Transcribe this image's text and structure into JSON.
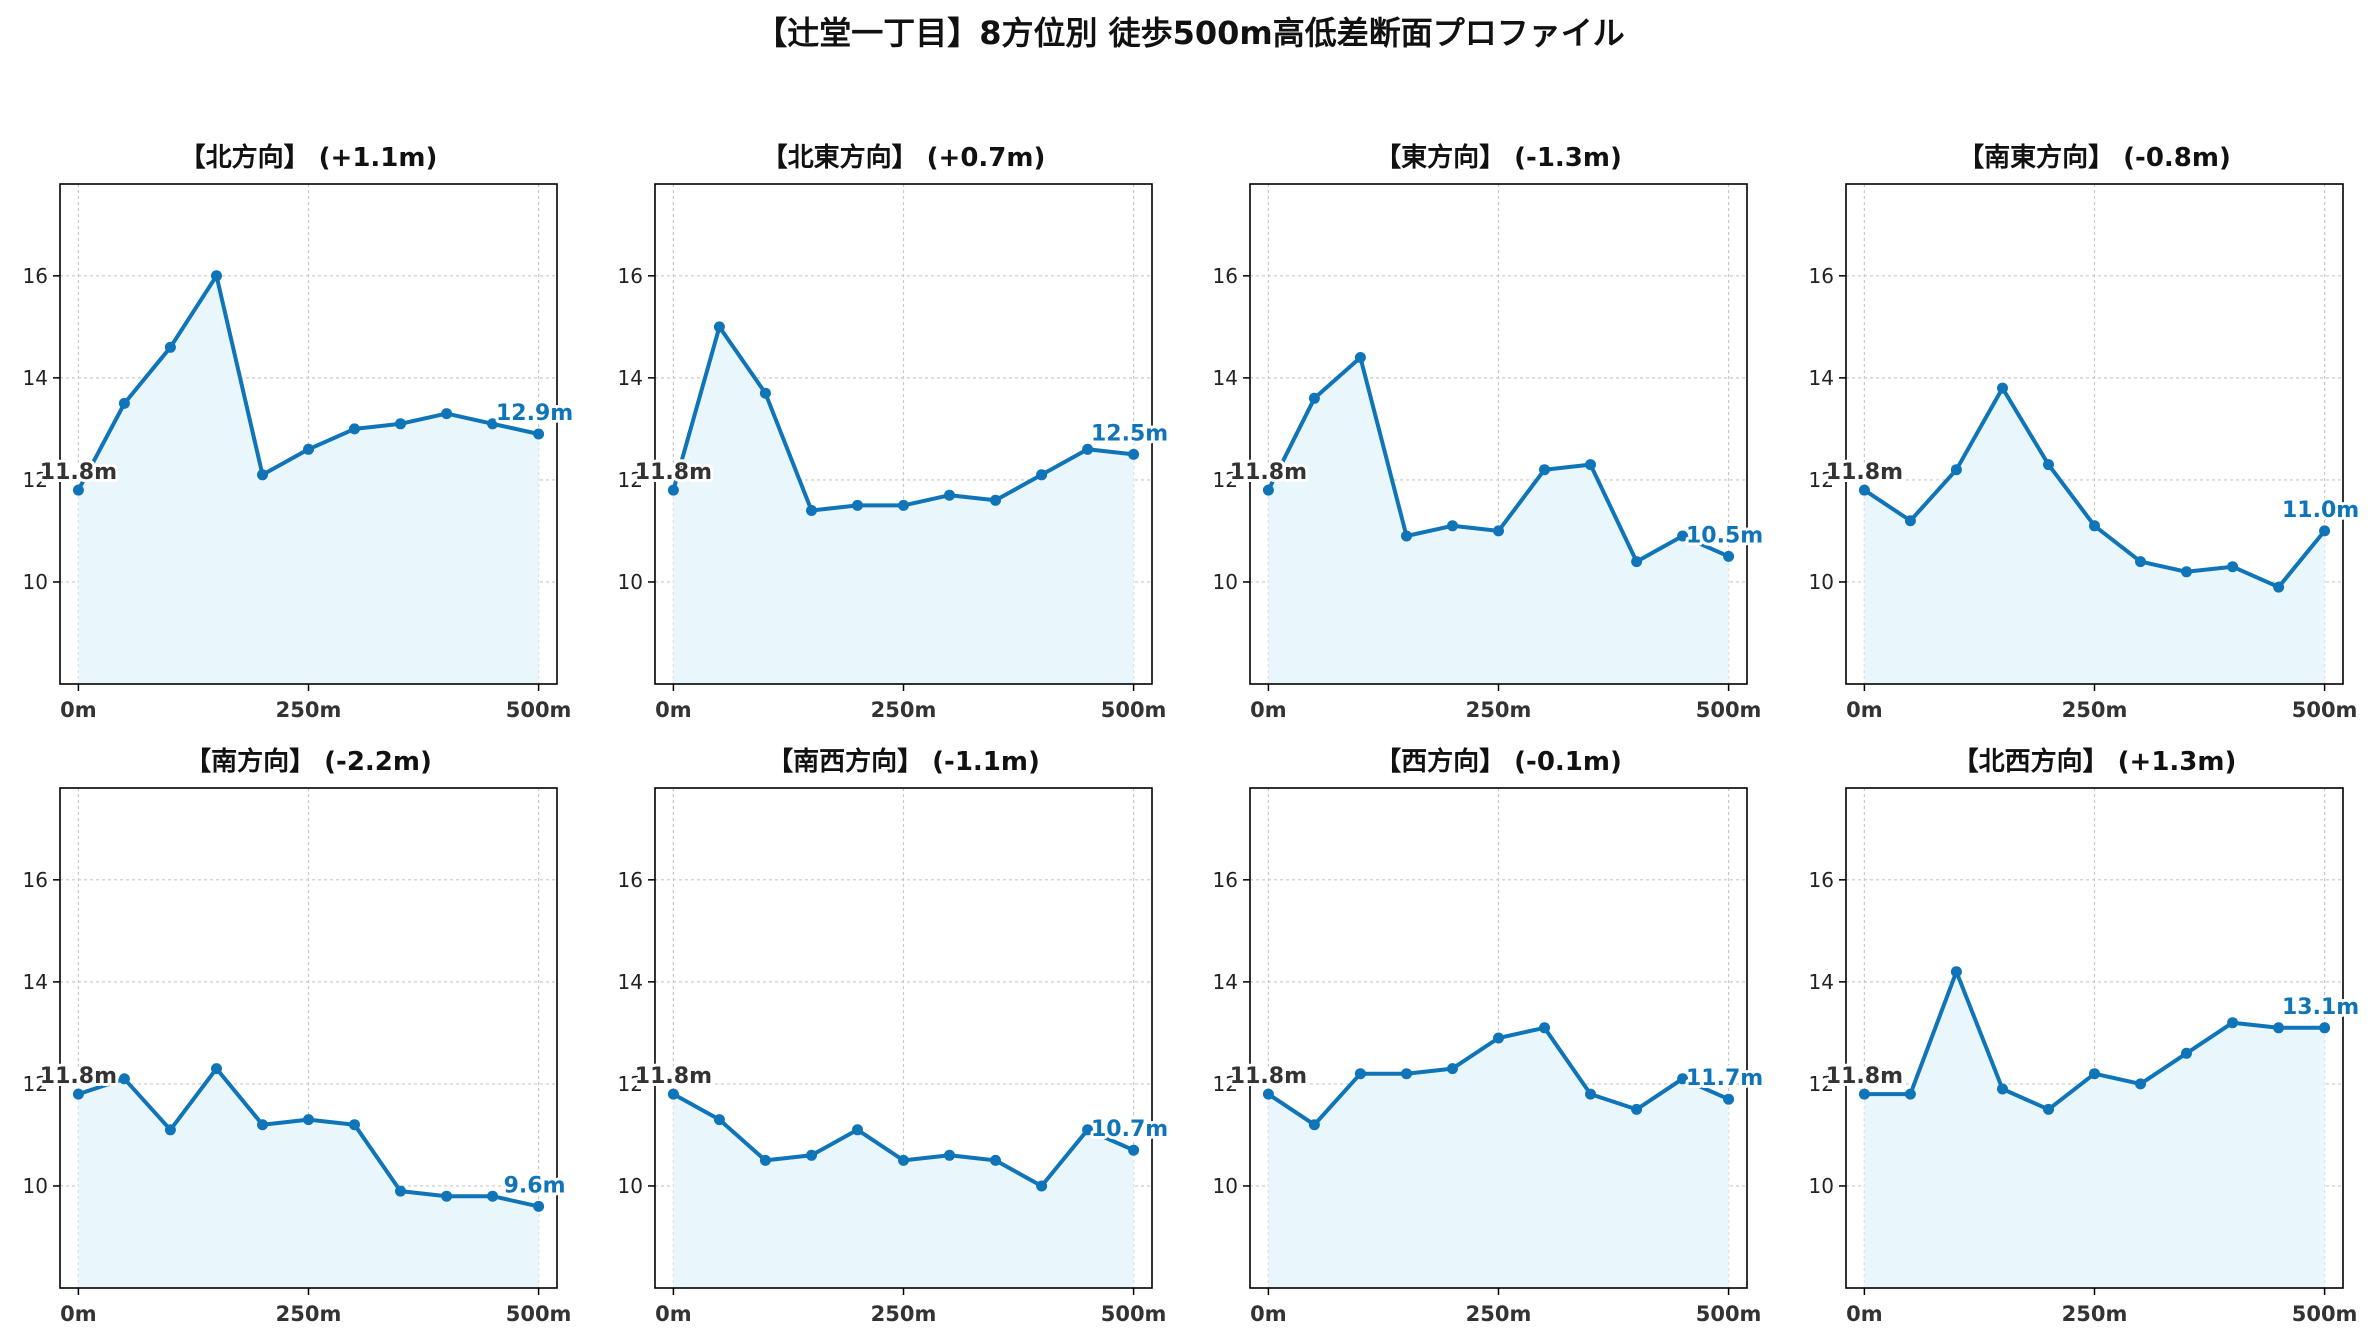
{
  "title": "【辻堂一丁目】8方位別 徒歩500m高低差断面プロファイル",
  "colors": {
    "line": "#0f75b8",
    "fill": "#e9f6fc",
    "start_label": "#333333",
    "end_label": "#0f75b8",
    "grid": "#c8c8c8",
    "axis": "#000000"
  },
  "chart_data": [
    {
      "type": "area",
      "title": "【北方向】 (+1.1m)",
      "x": [
        0,
        50,
        100,
        150,
        200,
        250,
        300,
        350,
        400,
        450,
        500
      ],
      "values": [
        11.8,
        13.5,
        14.6,
        16.0,
        12.1,
        12.6,
        13.0,
        13.1,
        13.3,
        13.1,
        12.9
      ],
      "start_label": "11.8m",
      "end_label": "12.9m",
      "xticks": [
        0,
        250,
        500
      ],
      "xtick_labels": [
        "0m",
        "250m",
        "500m"
      ],
      "yticks": [
        10,
        12,
        14,
        16
      ],
      "xlim": [
        -20,
        520
      ],
      "ylim": [
        8.0,
        17.8
      ],
      "grid": true
    },
    {
      "type": "area",
      "title": "【北東方向】 (+0.7m)",
      "x": [
        0,
        50,
        100,
        150,
        200,
        250,
        300,
        350,
        400,
        450,
        500
      ],
      "values": [
        11.8,
        15.0,
        13.7,
        11.4,
        11.5,
        11.5,
        11.7,
        11.6,
        12.1,
        12.6,
        12.5
      ],
      "start_label": "11.8m",
      "end_label": "12.5m",
      "xticks": [
        0,
        250,
        500
      ],
      "xtick_labels": [
        "0m",
        "250m",
        "500m"
      ],
      "yticks": [
        10,
        12,
        14,
        16
      ],
      "xlim": [
        -20,
        520
      ],
      "ylim": [
        8.0,
        17.8
      ],
      "grid": true
    },
    {
      "type": "area",
      "title": "【東方向】 (-1.3m)",
      "x": [
        0,
        50,
        100,
        150,
        200,
        250,
        300,
        350,
        400,
        450,
        500
      ],
      "values": [
        11.8,
        13.6,
        14.4,
        10.9,
        11.1,
        11.0,
        12.2,
        12.3,
        10.4,
        10.9,
        10.5
      ],
      "start_label": "11.8m",
      "end_label": "10.5m",
      "xticks": [
        0,
        250,
        500
      ],
      "xtick_labels": [
        "0m",
        "250m",
        "500m"
      ],
      "yticks": [
        10,
        12,
        14,
        16
      ],
      "xlim": [
        -20,
        520
      ],
      "ylim": [
        8.0,
        17.8
      ],
      "grid": true
    },
    {
      "type": "area",
      "title": "【南東方向】 (-0.8m)",
      "x": [
        0,
        50,
        100,
        150,
        200,
        250,
        300,
        350,
        400,
        450,
        500
      ],
      "values": [
        11.8,
        11.2,
        12.2,
        13.8,
        12.3,
        11.1,
        10.4,
        10.2,
        10.3,
        9.9,
        11.0
      ],
      "start_label": "11.8m",
      "end_label": "11.0m",
      "xticks": [
        0,
        250,
        500
      ],
      "xtick_labels": [
        "0m",
        "250m",
        "500m"
      ],
      "yticks": [
        10,
        12,
        14,
        16
      ],
      "xlim": [
        -20,
        520
      ],
      "ylim": [
        8.0,
        17.8
      ],
      "grid": true
    },
    {
      "type": "area",
      "title": "【南方向】 (-2.2m)",
      "x": [
        0,
        50,
        100,
        150,
        200,
        250,
        300,
        350,
        400,
        450,
        500
      ],
      "values": [
        11.8,
        12.1,
        11.1,
        12.3,
        11.2,
        11.3,
        11.2,
        9.9,
        9.8,
        9.8,
        9.6
      ],
      "start_label": "11.8m",
      "end_label": "9.6m",
      "xticks": [
        0,
        250,
        500
      ],
      "xtick_labels": [
        "0m",
        "250m",
        "500m"
      ],
      "yticks": [
        10,
        12,
        14,
        16
      ],
      "xlim": [
        -20,
        520
      ],
      "ylim": [
        8.0,
        17.8
      ],
      "grid": true
    },
    {
      "type": "area",
      "title": "【南西方向】 (-1.1m)",
      "x": [
        0,
        50,
        100,
        150,
        200,
        250,
        300,
        350,
        400,
        450,
        500
      ],
      "values": [
        11.8,
        11.3,
        10.5,
        10.6,
        11.1,
        10.5,
        10.6,
        10.5,
        10.0,
        11.1,
        10.7
      ],
      "start_label": "11.8m",
      "end_label": "10.7m",
      "xticks": [
        0,
        250,
        500
      ],
      "xtick_labels": [
        "0m",
        "250m",
        "500m"
      ],
      "yticks": [
        10,
        12,
        14,
        16
      ],
      "xlim": [
        -20,
        520
      ],
      "ylim": [
        8.0,
        17.8
      ],
      "grid": true
    },
    {
      "type": "area",
      "title": "【西方向】 (-0.1m)",
      "x": [
        0,
        50,
        100,
        150,
        200,
        250,
        300,
        350,
        400,
        450,
        500
      ],
      "values": [
        11.8,
        11.2,
        12.2,
        12.2,
        12.3,
        12.9,
        13.1,
        11.8,
        11.5,
        12.1,
        11.7
      ],
      "start_label": "11.8m",
      "end_label": "11.7m",
      "xticks": [
        0,
        250,
        500
      ],
      "xtick_labels": [
        "0m",
        "250m",
        "500m"
      ],
      "yticks": [
        10,
        12,
        14,
        16
      ],
      "xlim": [
        -20,
        520
      ],
      "ylim": [
        8.0,
        17.8
      ],
      "grid": true
    },
    {
      "type": "area",
      "title": "【北西方向】 (+1.3m)",
      "x": [
        0,
        50,
        100,
        150,
        200,
        250,
        300,
        350,
        400,
        450,
        500
      ],
      "values": [
        11.8,
        11.8,
        14.2,
        11.9,
        11.5,
        12.2,
        12.0,
        12.6,
        13.2,
        13.1,
        13.1
      ],
      "start_label": "11.8m",
      "end_label": "13.1m",
      "xticks": [
        0,
        250,
        500
      ],
      "xtick_labels": [
        "0m",
        "250m",
        "500m"
      ],
      "yticks": [
        10,
        12,
        14,
        16
      ],
      "xlim": [
        -20,
        520
      ],
      "ylim": [
        8.0,
        17.8
      ],
      "grid": true
    }
  ]
}
